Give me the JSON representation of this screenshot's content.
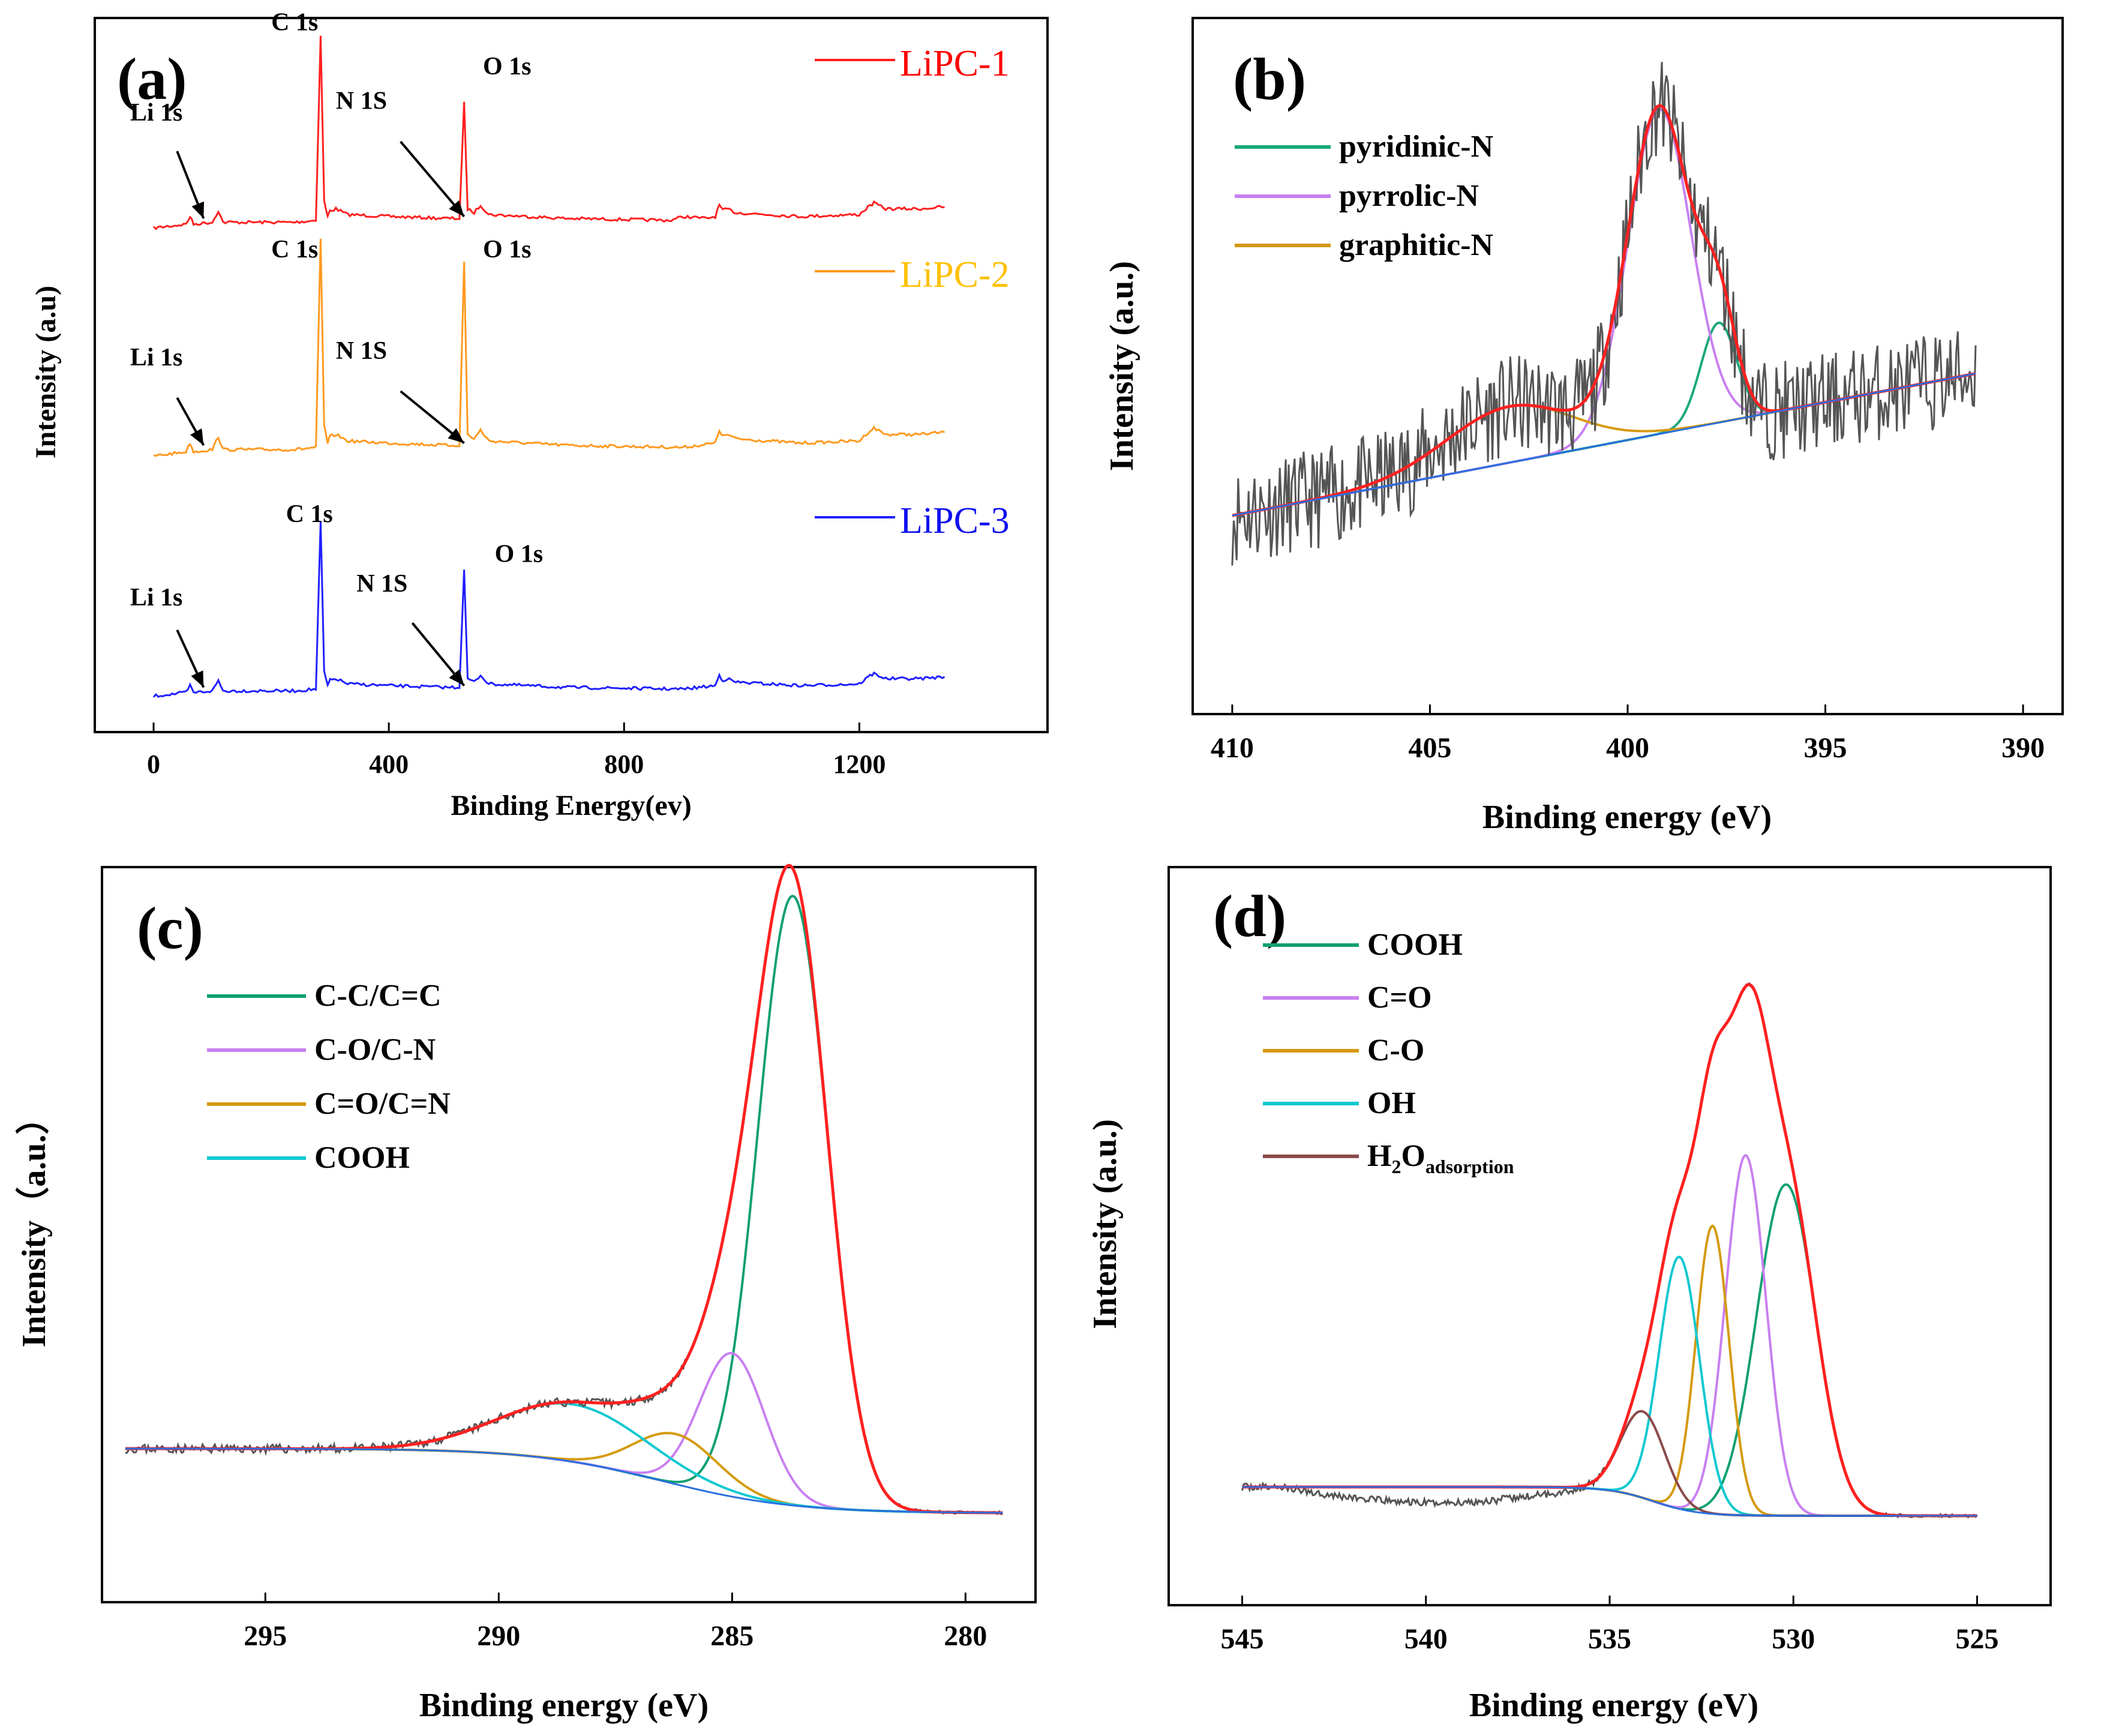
{
  "figure": {
    "description_panels": [
      "a",
      "b",
      "c",
      "d"
    ]
  },
  "chart_data": [
    {
      "panel": "(a)",
      "type": "line",
      "title": "",
      "xlabel": "Binding Energy(ev)",
      "ylabel": "Intensity (a.u)",
      "xlim": [
        -100,
        1520
      ],
      "xticks": [
        "0",
        "400",
        "800",
        "1200"
      ],
      "series": [
        {
          "name": "LiPC-1",
          "color": "#ff2020",
          "labelColor": "#ff0000",
          "points": [
            [
              0,
              0
            ],
            [
              55,
              0.02
            ],
            [
              62,
              0.06
            ],
            [
              68,
              0.02
            ],
            [
              100,
              0.03
            ],
            [
              110,
              0.09
            ],
            [
              118,
              0.03
            ],
            [
              240,
              0.03
            ],
            [
              276,
              0.04
            ],
            [
              284,
              1.0
            ],
            [
              290,
              0.14
            ],
            [
              296,
              0.06
            ],
            [
              300,
              0.09
            ],
            [
              310,
              0.1
            ],
            [
              330,
              0.07
            ],
            [
              400,
              0.06
            ],
            [
              500,
              0.05
            ],
            [
              520,
              0.05
            ],
            [
              528,
              0.65
            ],
            [
              534,
              0.1
            ],
            [
              545,
              0.08
            ],
            [
              556,
              0.12
            ],
            [
              570,
              0.07
            ],
            [
              700,
              0.05
            ],
            [
              880,
              0.04
            ],
            [
              900,
              0.06
            ],
            [
              940,
              0.05
            ],
            [
              955,
              0.06
            ],
            [
              962,
              0.12
            ],
            [
              968,
              0.09
            ],
            [
              975,
              0.1
            ],
            [
              990,
              0.08
            ],
            [
              1100,
              0.06
            ],
            [
              1200,
              0.07
            ],
            [
              1215,
              0.11
            ],
            [
              1225,
              0.13
            ],
            [
              1245,
              0.1
            ],
            [
              1300,
              0.1
            ],
            [
              1345,
              0.11
            ]
          ],
          "labels": [
            {
              "text": "C 1s",
              "x": 200,
              "y": 1.03
            },
            {
              "text": "N 1S",
              "x": 310,
              "y": 0.62
            },
            {
              "text": "O 1s",
              "x": 560,
              "y": 0.8
            },
            {
              "text": "Li 1s",
              "x": -40,
              "y": 0.56
            }
          ],
          "arrows": [
            {
              "from": [
                420,
                0.45
              ],
              "to": [
                528,
                0.06
              ]
            },
            {
              "from": [
                40,
                0.4
              ],
              "to": [
                85,
                0.05
              ]
            }
          ]
        },
        {
          "name": "LiPC-2",
          "color": "#ff9a20",
          "labelColor": "#ffc000",
          "points": [
            [
              0,
              0
            ],
            [
              55,
              0.02
            ],
            [
              62,
              0.06
            ],
            [
              68,
              0.02
            ],
            [
              100,
              0.03
            ],
            [
              110,
              0.09
            ],
            [
              118,
              0.03
            ],
            [
              240,
              0.03
            ],
            [
              276,
              0.04
            ],
            [
              284,
              1.0
            ],
            [
              290,
              0.14
            ],
            [
              296,
              0.06
            ],
            [
              300,
              0.09
            ],
            [
              310,
              0.1
            ],
            [
              330,
              0.07
            ],
            [
              400,
              0.06
            ],
            [
              500,
              0.05
            ],
            [
              520,
              0.05
            ],
            [
              528,
              0.9
            ],
            [
              534,
              0.1
            ],
            [
              545,
              0.08
            ],
            [
              556,
              0.12
            ],
            [
              570,
              0.07
            ],
            [
              700,
              0.05
            ],
            [
              900,
              0.04
            ],
            [
              955,
              0.06
            ],
            [
              962,
              0.12
            ],
            [
              968,
              0.09
            ],
            [
              975,
              0.1
            ],
            [
              990,
              0.08
            ],
            [
              1100,
              0.06
            ],
            [
              1200,
              0.07
            ],
            [
              1215,
              0.11
            ],
            [
              1225,
              0.13
            ],
            [
              1245,
              0.1
            ],
            [
              1300,
              0.1
            ],
            [
              1345,
              0.11
            ]
          ],
          "labels": [
            {
              "text": "C 1s",
              "x": 200,
              "y": 0.92
            },
            {
              "text": "N 1S",
              "x": 310,
              "y": 0.45
            },
            {
              "text": "O 1s",
              "x": 560,
              "y": 0.92
            },
            {
              "text": "Li 1s",
              "x": -40,
              "y": 0.42
            }
          ],
          "arrows": [
            {
              "from": [
                420,
                0.3
              ],
              "to": [
                528,
                0.06
              ]
            },
            {
              "from": [
                40,
                0.27
              ],
              "to": [
                85,
                0.05
              ]
            }
          ]
        },
        {
          "name": "LiPC-3",
          "color": "#2020ff",
          "labelColor": "#1010ee",
          "points": [
            [
              0,
              0
            ],
            [
              55,
              0.02
            ],
            [
              62,
              0.06
            ],
            [
              68,
              0.02
            ],
            [
              100,
              0.03
            ],
            [
              110,
              0.09
            ],
            [
              118,
              0.03
            ],
            [
              240,
              0.03
            ],
            [
              276,
              0.04
            ],
            [
              284,
              1.0
            ],
            [
              290,
              0.14
            ],
            [
              296,
              0.06
            ],
            [
              300,
              0.09
            ],
            [
              310,
              0.1
            ],
            [
              330,
              0.07
            ],
            [
              400,
              0.06
            ],
            [
              500,
              0.05
            ],
            [
              520,
              0.05
            ],
            [
              528,
              0.73
            ],
            [
              534,
              0.1
            ],
            [
              545,
              0.08
            ],
            [
              556,
              0.12
            ],
            [
              570,
              0.07
            ],
            [
              700,
              0.05
            ],
            [
              900,
              0.04
            ],
            [
              955,
              0.06
            ],
            [
              962,
              0.12
            ],
            [
              968,
              0.09
            ],
            [
              975,
              0.1
            ],
            [
              990,
              0.08
            ],
            [
              1100,
              0.06
            ],
            [
              1200,
              0.07
            ],
            [
              1215,
              0.11
            ],
            [
              1225,
              0.13
            ],
            [
              1245,
              0.1
            ],
            [
              1300,
              0.1
            ],
            [
              1345,
              0.11
            ]
          ],
          "labels": [
            {
              "text": "C 1s",
              "x": 225,
              "y": 1.0
            },
            {
              "text": "N 1S",
              "x": 345,
              "y": 0.6
            },
            {
              "text": "O 1s",
              "x": 580,
              "y": 0.77
            },
            {
              "text": "Li 1s",
              "x": -40,
              "y": 0.52
            }
          ],
          "arrows": [
            {
              "from": [
                440,
                0.42
              ],
              "to": [
                528,
                0.06
              ]
            },
            {
              "from": [
                40,
                0.38
              ],
              "to": [
                85,
                0.05
              ]
            }
          ]
        }
      ]
    },
    {
      "panel": "(b)",
      "type": "line",
      "title": "",
      "xlabel": "Binding energy (eV)",
      "ylabel": "Intensity (a.u.)",
      "xlim": [
        411,
        389
      ],
      "xticks": [
        410,
        405,
        400,
        395,
        390
      ],
      "ylim": [
        0,
        1.0
      ],
      "series": [
        {
          "name": "pyridinic-N",
          "color": "#1aa97a",
          "center": 397.7,
          "sigma": 0.45,
          "amp": 0.16
        },
        {
          "name": "pyrrolic-N",
          "color": "#c880f0",
          "center": 399.2,
          "sigma": 0.8,
          "amp": 0.52
        },
        {
          "name": "graphitic-N",
          "color": "#d49a10",
          "center": 403.0,
          "sigma": 1.6,
          "amp": 0.09
        }
      ],
      "envelope_color": "#ff2020",
      "raw_color": "#555555",
      "baseline": {
        "x1": 410,
        "y1": 0.27,
        "x2": 391,
        "y2": 0.5
      }
    },
    {
      "panel": "(c)",
      "type": "line",
      "title": "",
      "xlabel": "Binding energy (eV)",
      "ylabel": "Intensity（a.u.）",
      "xlim": [
        298.5,
        278.5
      ],
      "xticks": [
        295,
        290,
        285,
        280
      ],
      "ylim": [
        0,
        1.0
      ],
      "series": [
        {
          "name": "C-C/C=C",
          "color": "#10a070",
          "center": 283.7,
          "sigma": 0.75,
          "amp": 0.85
        },
        {
          "name": "C-O/C-N",
          "color": "#c880f0",
          "center": 285.0,
          "sigma": 0.7,
          "amp": 0.2
        },
        {
          "name": "C=O/C=N",
          "color": "#d49a10",
          "center": 286.2,
          "sigma": 0.9,
          "amp": 0.07
        },
        {
          "name": "COOH",
          "color": "#10c8d0",
          "center": 288.4,
          "sigma": 1.6,
          "amp": 0.08
        }
      ],
      "envelope_color": "#ff2020",
      "raw_color": "#555555",
      "baseline": {
        "x_left": 298,
        "y_left": 0.21,
        "x_right": 279.2,
        "y_right": 0.12
      }
    },
    {
      "panel": "(d)",
      "type": "line",
      "title": "",
      "xlabel": "Binding energy (eV)",
      "ylabel": "Intensity (a.u.)",
      "xlim": [
        547,
        523
      ],
      "xticks": [
        545,
        540,
        535,
        530,
        525
      ],
      "ylim": [
        0,
        1.0
      ],
      "series": [
        {
          "name": "COOH",
          "color": "#10a070",
          "center": 530.2,
          "sigma": 0.8,
          "amp": 0.46
        },
        {
          "name": "C=O",
          "color": "#c880f0",
          "center": 531.3,
          "sigma": 0.55,
          "amp": 0.5
        },
        {
          "name": "C-O",
          "color": "#d49a10",
          "center": 532.2,
          "sigma": 0.45,
          "amp": 0.4
        },
        {
          "name": "OH",
          "color": "#10c8d0",
          "center": 533.1,
          "sigma": 0.55,
          "amp": 0.35
        },
        {
          "name": "H2Oadsorption",
          "label_main": "H",
          "label_sub1": "2",
          "label_mid": "O",
          "label_sub2": "adsorption",
          "color": "#8a4a4a",
          "center": 534.1,
          "sigma": 0.6,
          "amp": 0.12
        }
      ],
      "envelope_color": "#ff2020",
      "raw_color": "#555555",
      "baseline": {
        "x_left": 545,
        "y_left": 0.16,
        "x_right": 525,
        "y_right": 0.12
      }
    }
  ]
}
